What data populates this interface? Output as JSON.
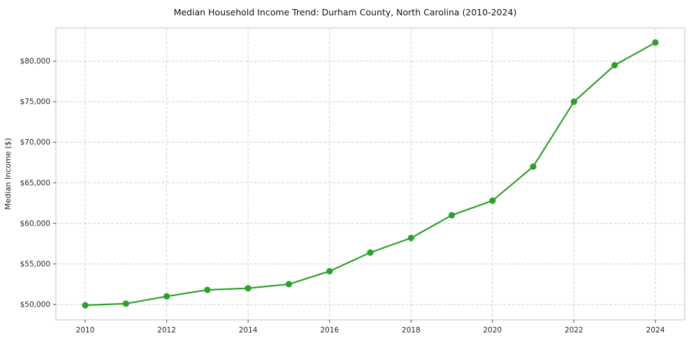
{
  "chart_data": {
    "type": "line",
    "title": "Median Household Income Trend: Durham County, North Carolina (2010-2024)",
    "xlabel": "",
    "ylabel": "Median Income ($)",
    "x": [
      2010,
      2011,
      2012,
      2013,
      2014,
      2015,
      2016,
      2017,
      2018,
      2019,
      2020,
      2021,
      2022,
      2023,
      2024
    ],
    "series": [
      {
        "name": "Median Household Income",
        "values": [
          49900,
          50100,
          51000,
          51800,
          52000,
          52500,
          54100,
          56400,
          58200,
          61000,
          62800,
          67000,
          75000,
          79500,
          82300
        ]
      }
    ],
    "xticks": [
      2010,
      2012,
      2014,
      2016,
      2018,
      2020,
      2022,
      2024
    ],
    "yticks": [
      50000,
      55000,
      60000,
      65000,
      70000,
      75000,
      80000
    ],
    "ytick_labels": [
      "$50,000",
      "$55,000",
      "$60,000",
      "$65,000",
      "$70,000",
      "$75,000",
      "$80,000"
    ],
    "ylim": [
      48100,
      84100
    ],
    "grid": true,
    "legend_position": "none",
    "line_color": "#2ca02c",
    "marker": "circle"
  }
}
